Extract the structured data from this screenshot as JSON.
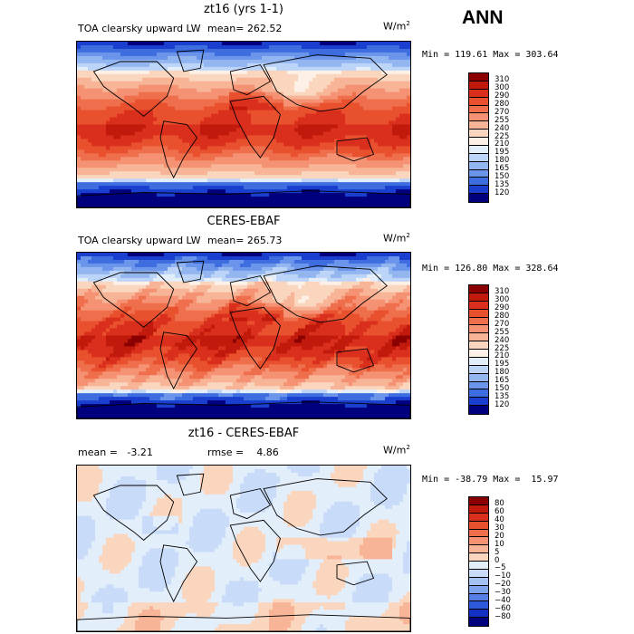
{
  "season": "ANN",
  "panels": [
    {
      "title": "zt16 (yrs 1-1)",
      "variable": "TOA clearsky upward LW",
      "stat1": "mean= 262.52",
      "stat2": "",
      "units_base": "W/m",
      "units_exp": "2",
      "minmax": "Min = 119.61 Max = 303.64",
      "field": "model",
      "ticks": [
        "310",
        "300",
        "290",
        "280",
        "270",
        "255",
        "240",
        "225",
        "210",
        "195",
        "180",
        "165",
        "150",
        "135",
        "120"
      ],
      "colors": [
        "#8b0000",
        "#c11a0c",
        "#da2f1c",
        "#e9502e",
        "#ef6f4d",
        "#f49273",
        "#f8b496",
        "#fbd6bf",
        "#fdf0e6",
        "#e3eefb",
        "#bcd4f7",
        "#93b6f1",
        "#6b95ea",
        "#3e6de0",
        "#1a3fcf",
        "#00007f"
      ]
    },
    {
      "title": "CERES-EBAF",
      "variable": "TOA clearsky upward LW",
      "stat1": "mean= 265.73",
      "stat2": "",
      "units_base": "W/m",
      "units_exp": "2",
      "minmax": "Min = 126.80 Max = 328.64",
      "field": "obs",
      "ticks": [
        "310",
        "300",
        "290",
        "280",
        "270",
        "255",
        "240",
        "225",
        "210",
        "195",
        "180",
        "165",
        "150",
        "135",
        "120"
      ],
      "colors": [
        "#8b0000",
        "#c11a0c",
        "#da2f1c",
        "#e9502e",
        "#ef6f4d",
        "#f49273",
        "#f8b496",
        "#fbd6bf",
        "#fdf0e6",
        "#e3eefb",
        "#bcd4f7",
        "#93b6f1",
        "#6b95ea",
        "#3e6de0",
        "#1a3fcf",
        "#00007f"
      ]
    },
    {
      "title": "zt16 - CERES-EBAF",
      "variable": "",
      "stat1": "mean =   -3.21",
      "stat2": "rmse =    4.86",
      "units_base": "W/m",
      "units_exp": "2",
      "minmax": "Min = -38.79 Max =  15.97",
      "field": "diff",
      "ticks": [
        "80",
        "60",
        "40",
        "30",
        "20",
        "10",
        "5",
        "0",
        "−5",
        "−10",
        "−20",
        "−30",
        "−40",
        "−60",
        "−80"
      ],
      "colors": [
        "#8b0000",
        "#c11a0c",
        "#da2f1c",
        "#e9502e",
        "#ef6f4d",
        "#f49273",
        "#f8b496",
        "#fbd6bf",
        "#e3eefb",
        "#c8dbf8",
        "#a4c2f3",
        "#7ea4ed",
        "#567fe5",
        "#2f57d9",
        "#1230c2",
        "#00007f"
      ]
    }
  ],
  "chart_data": {
    "type": "heatmap",
    "title": "ANN",
    "panels": [
      {
        "title": "zt16 (yrs 1-1)",
        "variable": "TOA clearsky upward LW",
        "units": "W/m2",
        "mean": 262.52,
        "min": 119.61,
        "max": 303.64,
        "levels": [
          120,
          135,
          150,
          165,
          180,
          195,
          210,
          225,
          240,
          255,
          270,
          280,
          290,
          300,
          310
        ]
      },
      {
        "title": "CERES-EBAF",
        "variable": "TOA clearsky upward LW",
        "units": "W/m2",
        "mean": 265.73,
        "min": 126.8,
        "max": 328.64,
        "levels": [
          120,
          135,
          150,
          165,
          180,
          195,
          210,
          225,
          240,
          255,
          270,
          280,
          290,
          300,
          310
        ]
      },
      {
        "title": "zt16 - CERES-EBAF",
        "units": "W/m2",
        "mean": -3.21,
        "rmse": 4.86,
        "min": -38.79,
        "max": 15.97,
        "levels": [
          -80,
          -60,
          -40,
          -30,
          -20,
          -10,
          -5,
          0,
          5,
          10,
          20,
          30,
          40,
          60,
          80
        ]
      }
    ]
  }
}
